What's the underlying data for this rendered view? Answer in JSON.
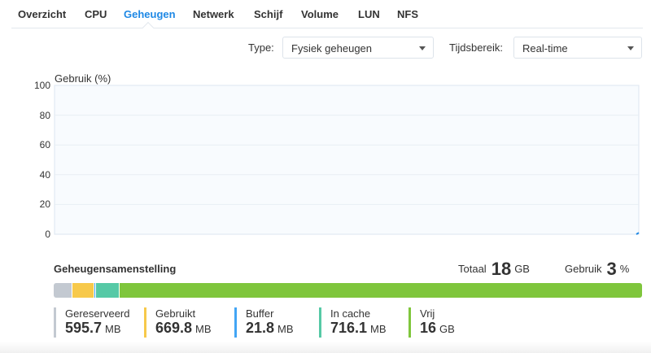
{
  "tabs": [
    "Overzicht",
    "CPU",
    "Geheugen",
    "Netwerk",
    "Schijf",
    "Volume",
    "LUN",
    "NFS"
  ],
  "active_tab": "Geheugen",
  "filters": {
    "type_label": "Type:",
    "type_value": "Fysiek geheugen",
    "range_label": "Tijdsbereik:",
    "range_value": "Real-time"
  },
  "chart_data": {
    "type": "line",
    "title": "Gebruik (%)",
    "ylabel": "Gebruik (%)",
    "ylim": [
      0,
      100
    ],
    "yticks": [
      "100",
      "80",
      "60",
      "40",
      "20",
      "0"
    ],
    "series": [
      {
        "name": "Gebruik",
        "values": [
          0,
          1
        ]
      }
    ],
    "color": "#1e88e5",
    "grid": true
  },
  "composition": {
    "title": "Geheugensamenstelling",
    "total_label": "Totaal",
    "total_value": "18",
    "total_unit": "GB",
    "usage_label": "Gebruik",
    "usage_value": "3",
    "usage_unit": "%",
    "items": [
      {
        "name": "Gereserveerd",
        "value": "595.7",
        "unit": "MB",
        "color": "#c3c9d1",
        "share": 3.2
      },
      {
        "name": "Gebruikt",
        "value": "669.8",
        "unit": "MB",
        "color": "#f7c94b",
        "share": 3.7
      },
      {
        "name": "Buffer",
        "value": "21.8",
        "unit": "MB",
        "color": "#42a5f5",
        "share": 0.3
      },
      {
        "name": "In cache",
        "value": "716.1",
        "unit": "MB",
        "color": "#56c9a6",
        "share": 4.0
      },
      {
        "name": "Vrij",
        "value": "16",
        "unit": "GB",
        "color": "#7fc63c",
        "share": 88.8
      }
    ]
  }
}
